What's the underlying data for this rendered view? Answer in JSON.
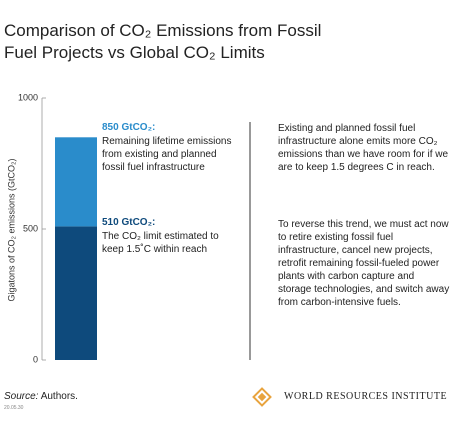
{
  "chart_data": {
    "type": "stacked-bar",
    "title": "Comparison of CO₂ Emissions from Fossil Fuel Projects vs Global CO₂ Limits",
    "y_label": "Gigatons of CO₂ emissions (GtCO₂)",
    "categories": [
      null
    ],
    "series": [
      {
        "color": "#0e4a7c",
        "values": [
          510
        ]
      },
      {
        "color": "#2a8ccb",
        "values": [
          340
        ]
      }
    ],
    "ylim": [
      0,
      1000
    ],
    "yticks": [
      0,
      500,
      1000
    ],
    "grid": false,
    "annotations": [
      {
        "label": "850 GtCO₂:",
        "text": "Remaining lifetime emissions from existing and planned fossil fuel infrastructure",
        "color": "#2a8ccb"
      },
      {
        "label": "510 GtCO₂:",
        "text": "The CO₂ limit estimated to keep 1.5˚C within reach",
        "color": "#0e4a7c"
      }
    ],
    "notes": [
      "Existing and planned fossil fuel infrastructure alone emits more CO₂ emissions than we have room for if we are to keep 1.5 degrees C in reach.",
      "To reverse this trend, we must act now to retire existing fossil fuel infrastructure, cancel new projects, retrofit remaining fossil-fueled power plants with carbon capture and storage technologies, and switch away from carbon-intensive fuels."
    ],
    "source": {
      "label": "Source:",
      "text": "Authors."
    },
    "code": "20.05.30",
    "logo": "WORLD RESOURCES INSTITUTE"
  }
}
